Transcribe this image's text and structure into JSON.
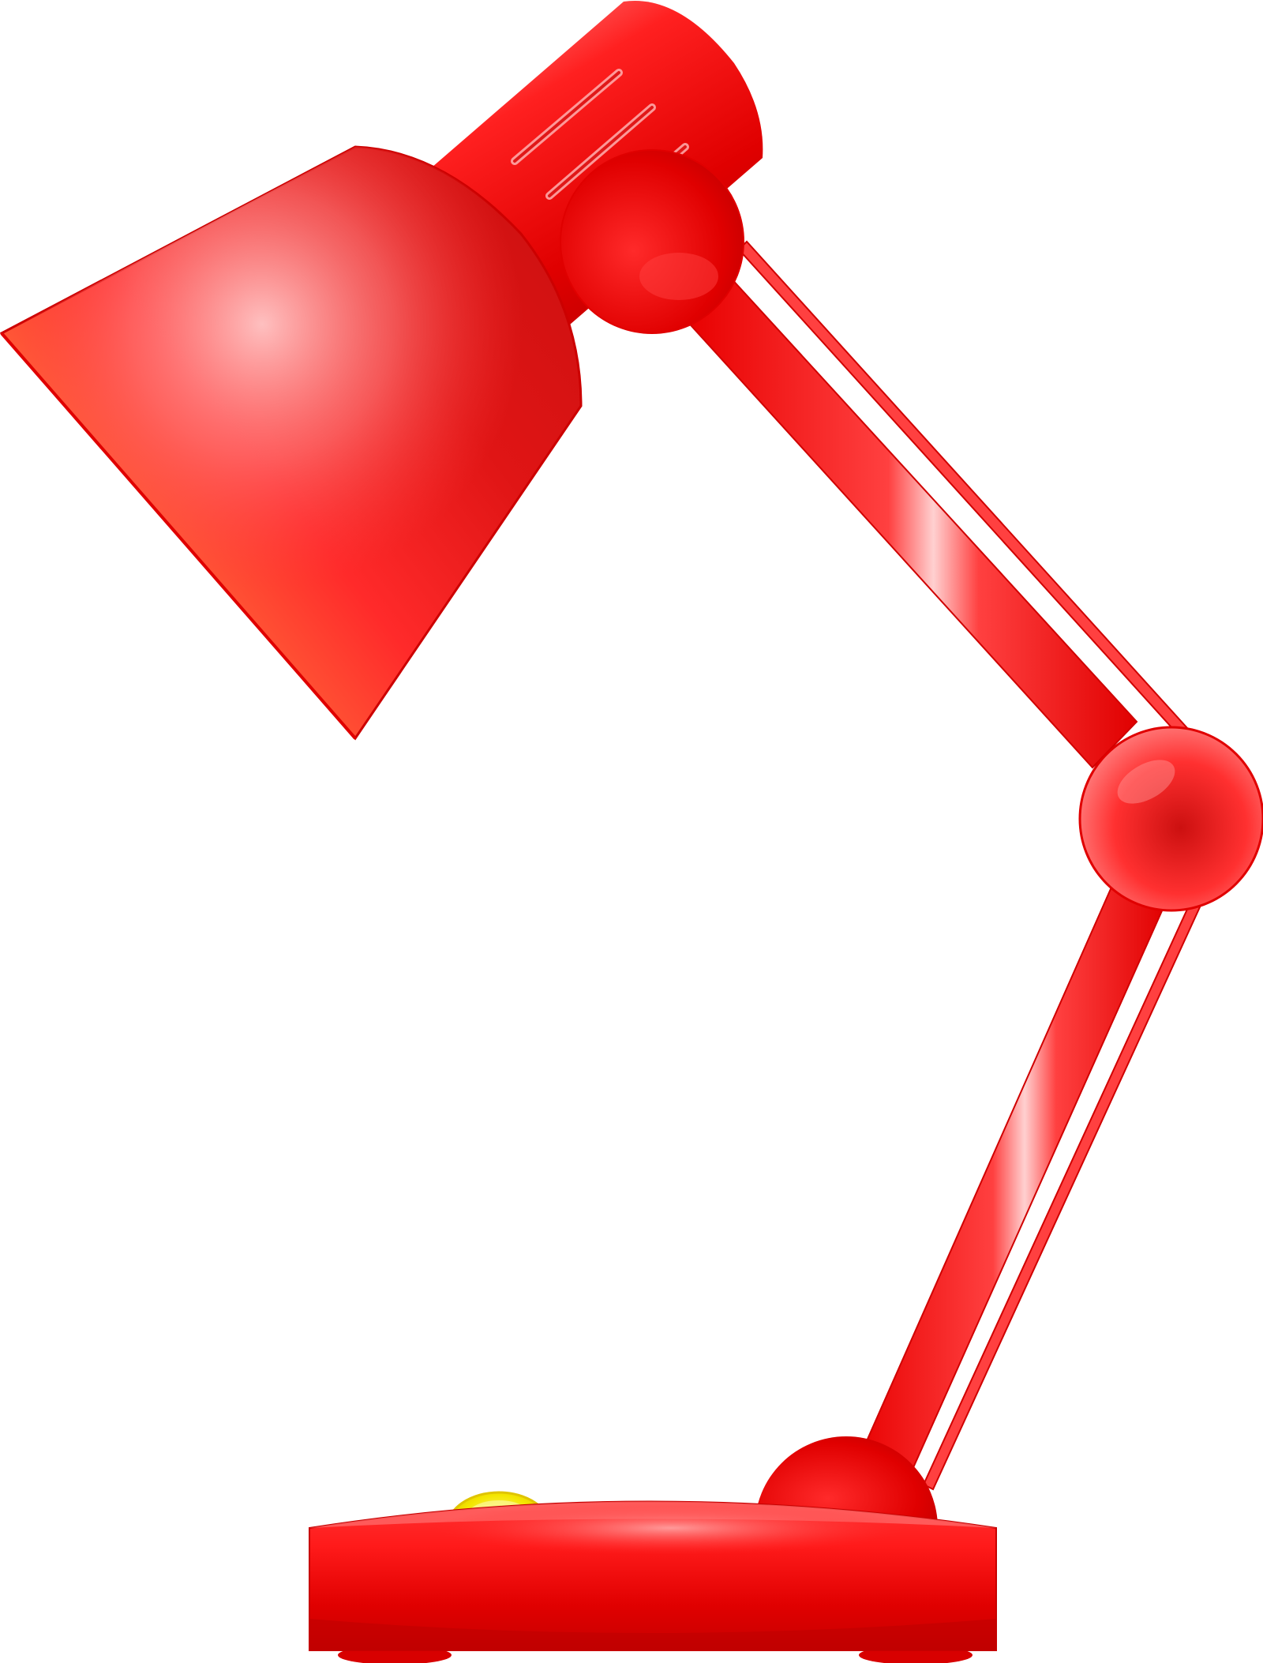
{
  "scene": {
    "subject": "desk-lamp",
    "background_color": "#ffffff"
  },
  "colors": {
    "lamp_red": "#ff1a1a",
    "lamp_red_dark": "#cc0000",
    "lamp_red_light": "#ff8a8a",
    "shade_highlight": "#ffbfbf",
    "shade_warm_edge": "#ffc49a",
    "switch_yellow": "#f4e600",
    "switch_yellow_light": "#fff79a"
  },
  "parts": {
    "shade": "lamp-shade",
    "neck": "lamp-neck",
    "head_joint": "head-joint",
    "upper_arm": "upper-arm",
    "elbow_joint": "elbow-joint",
    "lower_arm": "lower-arm",
    "base_joint": "base-joint",
    "base": "lamp-base",
    "switch": "power-switch"
  }
}
